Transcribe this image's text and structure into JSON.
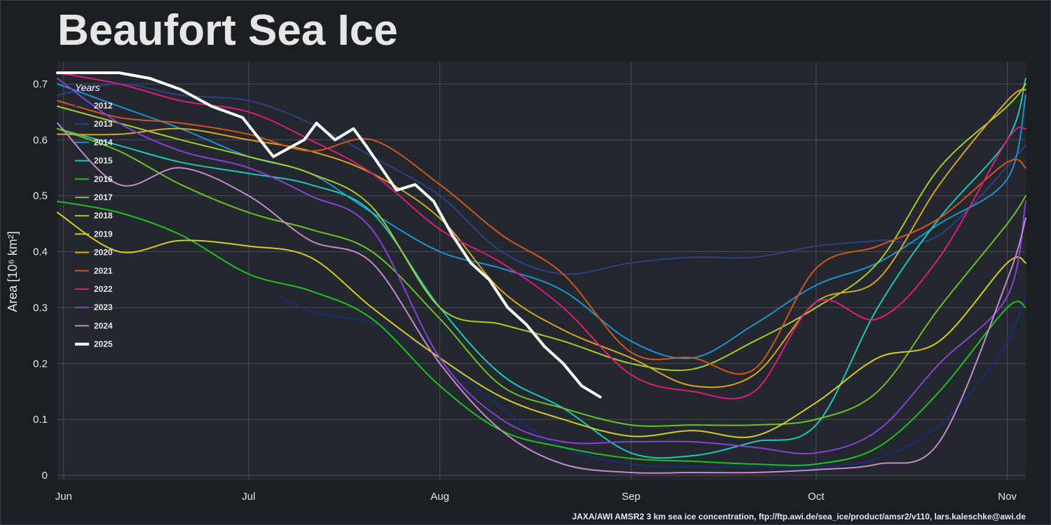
{
  "title": "Beaufort Sea Ice",
  "credit": "JAXA/AWI AMSR2 3 km sea ice concentration, ftp://ftp.awi.de/sea_ice/product/amsr2/v110, lars.kaleschke@awi.de",
  "chart_data": {
    "type": "line",
    "ylabel": "Area [10⁶ km²]",
    "xlim": [
      "2025-05-31",
      "2025-11-04"
    ],
    "ylim": [
      0,
      0.74
    ],
    "x_ticks": [
      {
        "label": "Jun",
        "date": "2025-06-01"
      },
      {
        "label": "Jul",
        "date": "2025-07-01"
      },
      {
        "label": "Aug",
        "date": "2025-08-01"
      },
      {
        "label": "Sep",
        "date": "2025-09-01"
      },
      {
        "label": "Oct",
        "date": "2025-10-01"
      },
      {
        "label": "Nov",
        "date": "2025-11-01"
      }
    ],
    "y_ticks": [
      0,
      0.1,
      0.2,
      0.3,
      0.4,
      0.5,
      0.6,
      0.7
    ],
    "y_tick_labels": [
      "0",
      "0.1",
      "0.2",
      "0.3",
      "0.4",
      "0.5",
      "0.6",
      "0.7"
    ],
    "grid": true,
    "legend": {
      "title": "Years",
      "position": "top-left"
    },
    "series": [
      {
        "name": "2012",
        "color": "#1b2a7a",
        "x": [
          "07-06",
          "07-12",
          "07-22",
          "08-01",
          "08-11",
          "08-21",
          "09-01",
          "09-11",
          "09-21",
          "10-01",
          "10-11",
          "10-21",
          "10-31",
          "11-04"
        ],
        "y": [
          0.32,
          0.29,
          0.27,
          0.21,
          0.12,
          0.05,
          0.02,
          0.015,
          0.015,
          0.015,
          0.03,
          0.09,
          0.22,
          0.32
        ]
      },
      {
        "name": "2013",
        "color": "#2f3f86",
        "x": [
          "05-31",
          "06-10",
          "06-20",
          "07-01",
          "07-11",
          "07-21",
          "08-01",
          "08-11",
          "08-21",
          "09-01",
          "09-11",
          "09-21",
          "10-01",
          "10-11",
          "10-21",
          "11-04"
        ],
        "y": [
          0.68,
          0.7,
          0.68,
          0.67,
          0.63,
          0.57,
          0.5,
          0.4,
          0.36,
          0.38,
          0.39,
          0.39,
          0.41,
          0.42,
          0.43,
          0.59
        ]
      },
      {
        "name": "2014",
        "color": "#1f8fd6",
        "x": [
          "05-31",
          "06-10",
          "06-20",
          "07-01",
          "07-11",
          "07-21",
          "08-01",
          "08-11",
          "08-21",
          "09-01",
          "09-11",
          "09-21",
          "10-01",
          "10-11",
          "10-21",
          "11-01",
          "11-04"
        ],
        "y": [
          0.7,
          0.66,
          0.62,
          0.57,
          0.54,
          0.47,
          0.4,
          0.37,
          0.33,
          0.24,
          0.21,
          0.27,
          0.34,
          0.38,
          0.45,
          0.53,
          0.68
        ]
      },
      {
        "name": "2015",
        "color": "#1cc8b8",
        "x": [
          "05-31",
          "06-10",
          "06-20",
          "07-01",
          "07-11",
          "07-21",
          "08-01",
          "08-11",
          "08-21",
          "09-01",
          "09-11",
          "09-21",
          "10-01",
          "10-11",
          "10-21",
          "11-01",
          "11-04"
        ],
        "y": [
          0.62,
          0.59,
          0.56,
          0.54,
          0.52,
          0.47,
          0.3,
          0.18,
          0.12,
          0.04,
          0.035,
          0.06,
          0.09,
          0.3,
          0.46,
          0.6,
          0.71
        ]
      },
      {
        "name": "2016",
        "color": "#20c020",
        "x": [
          "05-31",
          "06-10",
          "06-20",
          "07-01",
          "07-11",
          "07-21",
          "08-01",
          "08-11",
          "08-21",
          "09-01",
          "09-11",
          "09-21",
          "10-01",
          "10-11",
          "10-21",
          "11-01",
          "11-04"
        ],
        "y": [
          0.49,
          0.47,
          0.43,
          0.36,
          0.33,
          0.28,
          0.16,
          0.08,
          0.05,
          0.03,
          0.025,
          0.02,
          0.02,
          0.05,
          0.15,
          0.3,
          0.3
        ]
      },
      {
        "name": "2017",
        "color": "#6cbf24",
        "x": [
          "05-31",
          "06-10",
          "06-20",
          "07-01",
          "07-11",
          "07-21",
          "08-01",
          "08-11",
          "08-21",
          "09-01",
          "09-11",
          "09-21",
          "10-01",
          "10-11",
          "10-21",
          "11-01",
          "11-04"
        ],
        "y": [
          0.62,
          0.58,
          0.52,
          0.47,
          0.44,
          0.4,
          0.28,
          0.16,
          0.12,
          0.09,
          0.09,
          0.09,
          0.1,
          0.15,
          0.3,
          0.45,
          0.5
        ]
      },
      {
        "name": "2018",
        "color": "#a5cc2c",
        "x": [
          "05-31",
          "06-10",
          "06-20",
          "07-01",
          "07-11",
          "07-21",
          "08-01",
          "08-11",
          "08-21",
          "09-01",
          "09-11",
          "09-21",
          "10-01",
          "10-11",
          "10-21",
          "11-01",
          "11-04"
        ],
        "y": [
          0.66,
          0.63,
          0.6,
          0.57,
          0.54,
          0.48,
          0.3,
          0.27,
          0.24,
          0.2,
          0.19,
          0.24,
          0.3,
          0.38,
          0.55,
          0.66,
          0.7
        ]
      },
      {
        "name": "2019",
        "color": "#d4cc22",
        "x": [
          "05-31",
          "06-10",
          "06-20",
          "07-01",
          "07-11",
          "07-21",
          "08-01",
          "08-11",
          "08-21",
          "09-01",
          "09-11",
          "09-21",
          "10-01",
          "10-11",
          "10-21",
          "11-01",
          "11-04"
        ],
        "y": [
          0.47,
          0.4,
          0.42,
          0.41,
          0.39,
          0.3,
          0.21,
          0.14,
          0.1,
          0.07,
          0.08,
          0.07,
          0.13,
          0.21,
          0.24,
          0.38,
          0.38
        ]
      },
      {
        "name": "2020",
        "color": "#d9a520",
        "x": [
          "05-31",
          "06-10",
          "06-20",
          "07-01",
          "07-11",
          "07-21",
          "08-01",
          "08-11",
          "08-21",
          "09-01",
          "09-11",
          "09-21",
          "10-01",
          "10-11",
          "10-21",
          "11-01",
          "11-04"
        ],
        "y": [
          0.61,
          0.61,
          0.62,
          0.6,
          0.58,
          0.54,
          0.46,
          0.33,
          0.26,
          0.21,
          0.16,
          0.18,
          0.31,
          0.35,
          0.52,
          0.67,
          0.69
        ]
      },
      {
        "name": "2021",
        "color": "#d2561c",
        "x": [
          "05-31",
          "06-10",
          "06-20",
          "07-01",
          "07-11",
          "07-21",
          "08-01",
          "08-11",
          "08-21",
          "09-01",
          "09-11",
          "09-21",
          "10-01",
          "10-11",
          "10-21",
          "11-01",
          "11-04"
        ],
        "y": [
          0.67,
          0.64,
          0.63,
          0.61,
          0.58,
          0.6,
          0.52,
          0.43,
          0.36,
          0.22,
          0.21,
          0.19,
          0.37,
          0.41,
          0.46,
          0.56,
          0.55
        ]
      },
      {
        "name": "2022",
        "color": "#e01c78",
        "x": [
          "05-31",
          "06-10",
          "06-20",
          "07-01",
          "07-11",
          "07-21",
          "08-01",
          "08-11",
          "08-21",
          "09-01",
          "09-11",
          "09-21",
          "10-01",
          "10-11",
          "10-21",
          "11-01",
          "11-04"
        ],
        "y": [
          0.72,
          0.7,
          0.67,
          0.65,
          0.6,
          0.54,
          0.44,
          0.38,
          0.3,
          0.18,
          0.15,
          0.15,
          0.31,
          0.28,
          0.39,
          0.6,
          0.62
        ]
      },
      {
        "name": "2023",
        "color": "#8b3fd8",
        "x": [
          "05-31",
          "06-10",
          "06-20",
          "07-01",
          "07-11",
          "07-21",
          "08-01",
          "08-11",
          "08-21",
          "09-01",
          "09-11",
          "09-21",
          "10-01",
          "10-11",
          "10-21",
          "11-01",
          "11-04"
        ],
        "y": [
          0.71,
          0.63,
          0.58,
          0.55,
          0.5,
          0.44,
          0.21,
          0.1,
          0.06,
          0.06,
          0.06,
          0.05,
          0.04,
          0.08,
          0.2,
          0.32,
          0.49
        ]
      },
      {
        "name": "2024",
        "color": "#c58ad0",
        "x": [
          "05-31",
          "06-10",
          "06-20",
          "07-01",
          "07-11",
          "07-21",
          "08-01",
          "08-11",
          "08-21",
          "09-01",
          "09-11",
          "09-21",
          "10-01",
          "10-11",
          "10-21",
          "11-01",
          "11-04"
        ],
        "y": [
          0.63,
          0.52,
          0.55,
          0.5,
          0.42,
          0.38,
          0.2,
          0.08,
          0.02,
          0.005,
          0.005,
          0.005,
          0.01,
          0.02,
          0.06,
          0.35,
          0.46
        ]
      },
      {
        "name": "2025",
        "color": "#ffffff",
        "x": [
          "05-31",
          "06-05",
          "06-10",
          "06-15",
          "06-20",
          "06-25",
          "06-30",
          "07-05",
          "07-10",
          "07-12",
          "07-15",
          "07-18",
          "07-20",
          "07-25",
          "07-28",
          "07-31",
          "08-03",
          "08-06",
          "08-09",
          "08-12",
          "08-15",
          "08-18",
          "08-21",
          "08-24",
          "08-27"
        ],
        "y": [
          0.72,
          0.72,
          0.72,
          0.71,
          0.69,
          0.66,
          0.64,
          0.57,
          0.6,
          0.63,
          0.6,
          0.62,
          0.59,
          0.51,
          0.52,
          0.49,
          0.43,
          0.38,
          0.35,
          0.3,
          0.27,
          0.23,
          0.2,
          0.16,
          0.14
        ]
      }
    ]
  }
}
